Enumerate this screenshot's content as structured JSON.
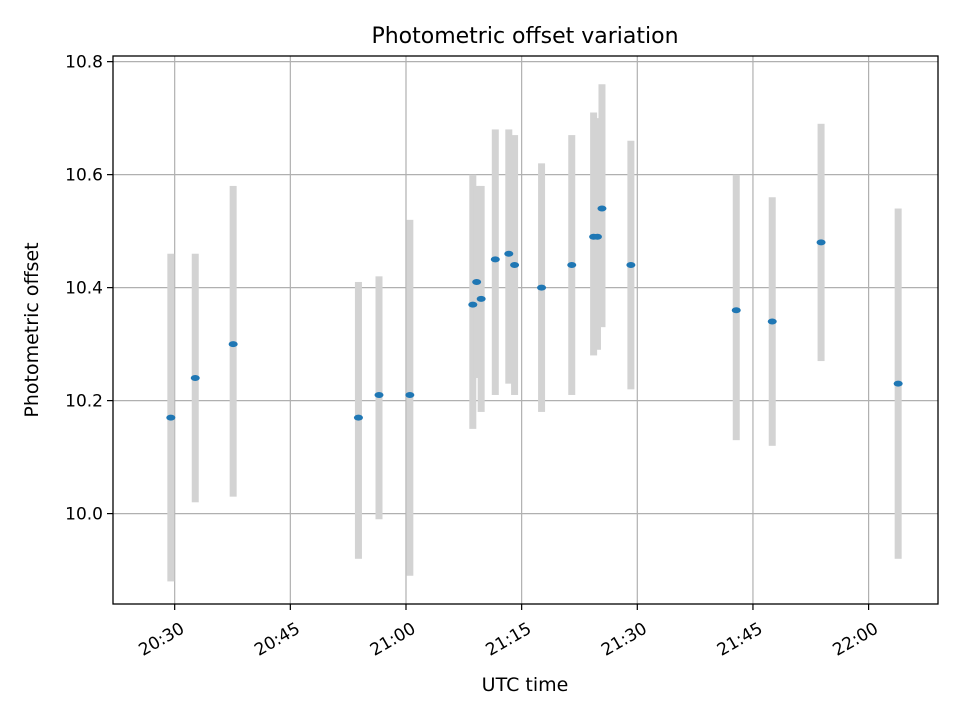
{
  "chart_data": {
    "type": "scatter",
    "title": "Photometric offset variation",
    "xlabel": "UTC time",
    "ylabel": "Photometric offset",
    "x_ticks": [
      "20:30",
      "20:45",
      "21:00",
      "21:15",
      "21:30",
      "21:45",
      "22:00"
    ],
    "y_ticks": [
      "10.0",
      "10.2",
      "10.4",
      "10.6",
      "10.8"
    ],
    "xlim": [
      "20:22",
      "22:09"
    ],
    "ylim": [
      9.84,
      10.81
    ],
    "grid": true,
    "colors": {
      "point": "#1f77b4",
      "errorbar": "#d3d3d3",
      "grid": "#b0b0b0"
    },
    "points": [
      {
        "time": "20:29:30",
        "y": 10.17,
        "ylow": 9.88,
        "yhigh": 10.46
      },
      {
        "time": "20:32:40",
        "y": 10.24,
        "ylow": 10.02,
        "yhigh": 10.46
      },
      {
        "time": "20:37:35",
        "y": 10.3,
        "ylow": 10.03,
        "yhigh": 10.58
      },
      {
        "time": "20:53:50",
        "y": 10.17,
        "ylow": 9.92,
        "yhigh": 10.41
      },
      {
        "time": "20:56:30",
        "y": 10.21,
        "ylow": 9.99,
        "yhigh": 10.42
      },
      {
        "time": "21:00:30",
        "y": 10.21,
        "ylow": 9.89,
        "yhigh": 10.52
      },
      {
        "time": "21:08:40",
        "y": 10.37,
        "ylow": 10.15,
        "yhigh": 10.6
      },
      {
        "time": "21:09:10",
        "y": 10.41,
        "ylow": 10.24,
        "yhigh": 10.58
      },
      {
        "time": "21:09:45",
        "y": 10.38,
        "ylow": 10.18,
        "yhigh": 10.58
      },
      {
        "time": "21:11:35",
        "y": 10.45,
        "ylow": 10.21,
        "yhigh": 10.68
      },
      {
        "time": "21:13:20",
        "y": 10.46,
        "ylow": 10.23,
        "yhigh": 10.68
      },
      {
        "time": "21:14:05",
        "y": 10.44,
        "ylow": 10.21,
        "yhigh": 10.67
      },
      {
        "time": "21:17:35",
        "y": 10.4,
        "ylow": 10.18,
        "yhigh": 10.62
      },
      {
        "time": "21:21:30",
        "y": 10.44,
        "ylow": 10.21,
        "yhigh": 10.67
      },
      {
        "time": "21:24:20",
        "y": 10.49,
        "ylow": 10.28,
        "yhigh": 10.71
      },
      {
        "time": "21:24:50",
        "y": 10.49,
        "ylow": 10.29,
        "yhigh": 10.7
      },
      {
        "time": "21:25:25",
        "y": 10.54,
        "ylow": 10.33,
        "yhigh": 10.76
      },
      {
        "time": "21:29:10",
        "y": 10.44,
        "ylow": 10.22,
        "yhigh": 10.66
      },
      {
        "time": "21:42:50",
        "y": 10.36,
        "ylow": 10.13,
        "yhigh": 10.6
      },
      {
        "time": "21:47:30",
        "y": 10.34,
        "ylow": 10.12,
        "yhigh": 10.56
      },
      {
        "time": "21:53:50",
        "y": 10.48,
        "ylow": 10.27,
        "yhigh": 10.69
      },
      {
        "time": "22:03:50",
        "y": 10.23,
        "ylow": 9.92,
        "yhigh": 10.54
      }
    ]
  }
}
